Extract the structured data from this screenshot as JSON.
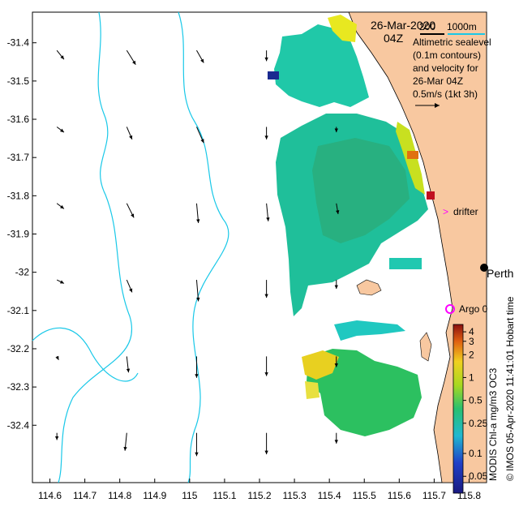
{
  "map": {
    "date": "26-Mar-2020",
    "time": "04Z",
    "scale_label_left": "200",
    "scale_label_right": "1000m",
    "legend_lines": [
      "Altimetric sealevel",
      "(0.1m contours)",
      "and velocity for",
      "26-Mar 04Z"
    ],
    "velocity_scale_label": "0.5m/s (1kt 3h)",
    "lon_ticks": [
      "114.6",
      "114.7",
      "114.8",
      "114.9",
      "115",
      "115.1",
      "115.2",
      "115.3",
      "115.4",
      "115.5",
      "115.6",
      "115.7",
      "115.8"
    ],
    "lat_ticks": [
      "-31.4",
      "-31.5",
      "-31.6",
      "-31.7",
      "-31.8",
      "-31.9",
      "-32",
      "-32.1",
      "-32.2",
      "-32.3",
      "-32.4"
    ],
    "markers": [
      {
        "name": "drifter",
        "label": "drifter",
        "color": "#ff00ff"
      },
      {
        "name": "perth",
        "label": "Perth",
        "color": "#000000"
      },
      {
        "name": "argo",
        "label": "Argo 0",
        "color": "#ff00ff"
      }
    ],
    "side_credit": "© IMOS 05-Apr-2020 11:41:01 Hobart time",
    "colorbar_title": "MODIS Chl-a mg/m3 OC3",
    "colorbar_ticks": [
      "4",
      "3",
      "2",
      "1",
      "0.5",
      "0.25",
      "0.1",
      "0.05"
    ],
    "colors": {
      "land": "#f8c8a0",
      "contour": "#19c8e8",
      "arrow": "#000000"
    }
  },
  "chart_data": {
    "type": "heatmap",
    "xlabel": "",
    "ylabel": "",
    "xlim": [
      114.55,
      115.85
    ],
    "ylim": [
      -32.55,
      -31.32
    ],
    "colorbar": {
      "label": "MODIS Chl-a mg/m3 OC3",
      "ticks": [
        4,
        3,
        2,
        1,
        0.5,
        0.25,
        0.1,
        0.05
      ],
      "scale": "log"
    },
    "velocity_arrows": [
      {
        "lon": 114.62,
        "lat": -31.42,
        "u": 0.04,
        "v": -0.05
      },
      {
        "lon": 114.82,
        "lat": -31.42,
        "u": 0.05,
        "v": -0.08
      },
      {
        "lon": 115.02,
        "lat": -31.42,
        "u": 0.04,
        "v": -0.07
      },
      {
        "lon": 115.22,
        "lat": -31.42,
        "u": 0.0,
        "v": -0.06
      },
      {
        "lon": 114.62,
        "lat": -31.62,
        "u": 0.04,
        "v": -0.03
      },
      {
        "lon": 114.82,
        "lat": -31.62,
        "u": 0.03,
        "v": -0.07
      },
      {
        "lon": 115.02,
        "lat": -31.62,
        "u": 0.04,
        "v": -0.09
      },
      {
        "lon": 115.22,
        "lat": -31.62,
        "u": 0.0,
        "v": -0.07
      },
      {
        "lon": 115.42,
        "lat": -31.62,
        "u": 0.0,
        "v": -0.03
      },
      {
        "lon": 114.62,
        "lat": -31.82,
        "u": 0.04,
        "v": -0.03
      },
      {
        "lon": 114.82,
        "lat": -31.82,
        "u": 0.04,
        "v": -0.08
      },
      {
        "lon": 115.02,
        "lat": -31.82,
        "u": 0.01,
        "v": -0.11
      },
      {
        "lon": 115.22,
        "lat": -31.82,
        "u": 0.01,
        "v": -0.1
      },
      {
        "lon": 115.42,
        "lat": -31.82,
        "u": 0.01,
        "v": -0.06
      },
      {
        "lon": 114.62,
        "lat": -32.02,
        "u": 0.04,
        "v": -0.02
      },
      {
        "lon": 114.82,
        "lat": -32.02,
        "u": 0.03,
        "v": -0.07
      },
      {
        "lon": 115.02,
        "lat": -32.02,
        "u": 0.01,
        "v": -0.12
      },
      {
        "lon": 115.22,
        "lat": -32.02,
        "u": 0.0,
        "v": -0.1
      },
      {
        "lon": 115.42,
        "lat": -32.02,
        "u": 0.0,
        "v": -0.05
      },
      {
        "lon": 114.62,
        "lat": -32.22,
        "u": 0.01,
        "v": -0.02
      },
      {
        "lon": 114.82,
        "lat": -32.22,
        "u": 0.01,
        "v": -0.09
      },
      {
        "lon": 115.02,
        "lat": -32.22,
        "u": 0.0,
        "v": -0.12
      },
      {
        "lon": 115.22,
        "lat": -32.22,
        "u": 0.0,
        "v": -0.11
      },
      {
        "lon": 115.42,
        "lat": -32.22,
        "u": 0.0,
        "v": -0.06
      },
      {
        "lon": 114.62,
        "lat": -32.42,
        "u": 0.0,
        "v": -0.04
      },
      {
        "lon": 114.82,
        "lat": -32.42,
        "u": -0.01,
        "v": -0.1
      },
      {
        "lon": 115.02,
        "lat": -32.42,
        "u": 0.0,
        "v": -0.13
      },
      {
        "lon": 115.22,
        "lat": -32.42,
        "u": 0.0,
        "v": -0.12
      },
      {
        "lon": 115.42,
        "lat": -32.42,
        "u": 0.0,
        "v": -0.06
      }
    ],
    "chl_patches": [
      {
        "region": "north-blob",
        "lon_range": [
          115.31,
          115.52
        ],
        "lat_range": [
          -31.68,
          -31.32
        ],
        "value": 0.3
      },
      {
        "region": "main-blob",
        "lon_range": [
          115.32,
          115.69
        ],
        "lat_range": [
          -32.1,
          -31.6
        ],
        "value": 0.35
      },
      {
        "region": "coastal-band",
        "lon_range": [
          115.62,
          115.7
        ],
        "lat_range": [
          -31.78,
          -31.57
        ],
        "value": 1.5
      },
      {
        "region": "south-blob",
        "lon_range": [
          115.31,
          115.63
        ],
        "lat_range": [
          -32.33,
          -32.13
        ],
        "value": 0.45
      }
    ]
  }
}
